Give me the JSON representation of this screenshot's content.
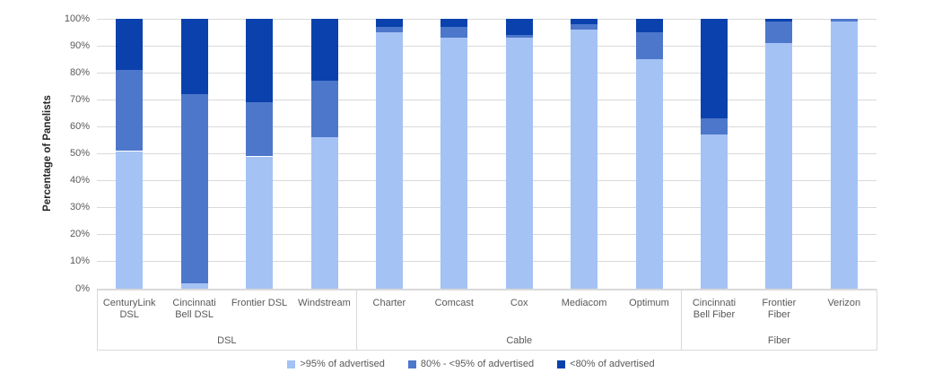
{
  "chart_data": {
    "type": "bar",
    "stacked": true,
    "title": "",
    "ylabel": "Percentage of Panelists",
    "xlabel": "",
    "ylim": [
      0,
      100
    ],
    "ytick_step": 10,
    "ytick_labels": [
      "0%",
      "10%",
      "20%",
      "30%",
      "40%",
      "50%",
      "60%",
      "70%",
      "80%",
      "90%",
      "100%"
    ],
    "grid": "horizontal",
    "legend_position": "bottom-center",
    "groups": [
      {
        "label": "DSL",
        "count": 4
      },
      {
        "label": "Cable",
        "count": 5
      },
      {
        "label": "Fiber",
        "count": 3
      }
    ],
    "categories": [
      "CenturyLink DSL",
      "Cincinnati Bell DSL",
      "Frontier DSL",
      "Windstream",
      "Charter",
      "Comcast",
      "Cox",
      "Mediacom",
      "Optimum",
      "Cincinnati Bell Fiber",
      "Frontier Fiber",
      "Verizon"
    ],
    "category_lines": [
      [
        "CenturyLink",
        "DSL"
      ],
      [
        "Cincinnati",
        "Bell DSL"
      ],
      [
        "Frontier DSL"
      ],
      [
        "Windstream"
      ],
      [
        "Charter"
      ],
      [
        "Comcast"
      ],
      [
        "Cox"
      ],
      [
        "Mediacom"
      ],
      [
        "Optimum"
      ],
      [
        "Cincinnati",
        "Bell Fiber"
      ],
      [
        "Frontier",
        "Fiber"
      ],
      [
        "Verizon"
      ]
    ],
    "series": [
      {
        "name": ">95% of advertised",
        "color": "#A4C2F4",
        "values": [
          51,
          2,
          49,
          56,
          95,
          93,
          93,
          96,
          85,
          57,
          91,
          99
        ]
      },
      {
        "name": "80% - <95% of advertised",
        "color": "#4D77CB",
        "values": [
          30,
          70,
          20,
          21,
          2,
          4,
          1,
          2,
          10,
          6,
          8,
          1
        ]
      },
      {
        "name": "<80% of advertised",
        "color": "#0A41AC",
        "values": [
          19,
          28,
          31,
          23,
          3,
          3,
          6,
          2,
          5,
          37,
          1,
          0
        ]
      }
    ],
    "colors": {
      "gridline": "#D9D9D9",
      "axis_line": "#D9D9D9",
      "axis_text": "#595959",
      "axis_title_text": "#262626",
      "background": "#FFFFFF"
    }
  }
}
